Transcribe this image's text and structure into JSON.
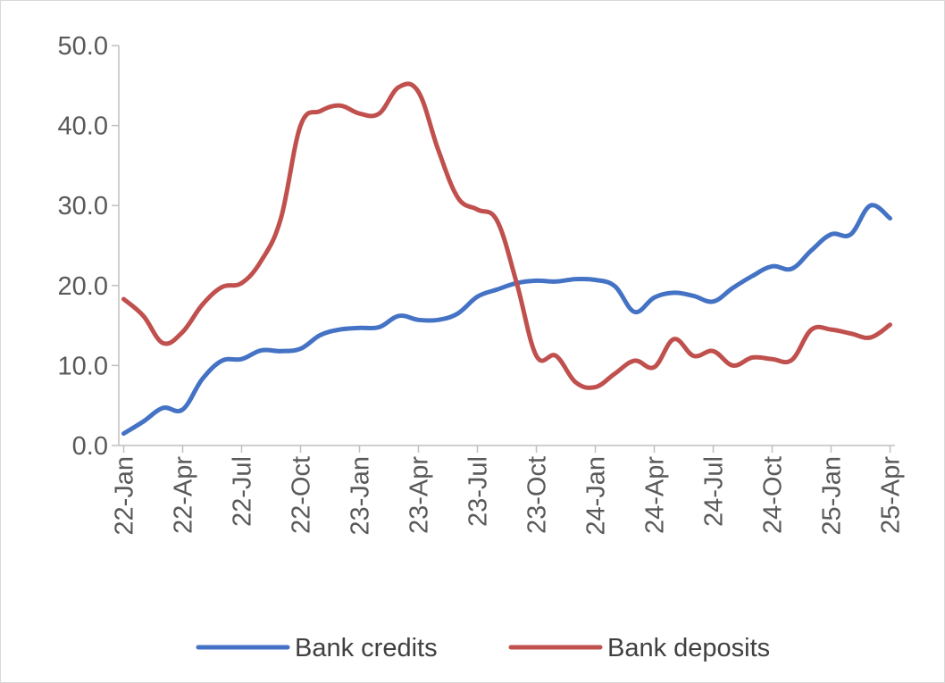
{
  "chart_data": {
    "type": "line",
    "title": "",
    "xlabel": "",
    "ylabel": "",
    "ylim": [
      0,
      50
    ],
    "yticks": [
      "0.0",
      "10.0",
      "20.0",
      "30.0",
      "40.0",
      "50.0"
    ],
    "y_tick_values": [
      0,
      10,
      20,
      30,
      40,
      50
    ],
    "xtick_labels": [
      "22-Jan",
      "22-Apr",
      "22-Jul",
      "22-Oct",
      "23-Jan",
      "23-Apr",
      "23-Jul",
      "23-Oct",
      "24-Jan",
      "24-Apr",
      "24-Jul",
      "24-Oct",
      "25-Jan",
      "25-Apr"
    ],
    "x": [
      "22-Jan",
      "22-Feb",
      "22-Mar",
      "22-Apr",
      "22-May",
      "22-Jun",
      "22-Jul",
      "22-Aug",
      "22-Sep",
      "22-Oct",
      "22-Nov",
      "22-Dec",
      "23-Jan",
      "23-Feb",
      "23-Mar",
      "23-Apr",
      "23-May",
      "23-Jun",
      "23-Jul",
      "23-Aug",
      "23-Sep",
      "23-Oct",
      "23-Nov",
      "23-Dec",
      "24-Jan",
      "24-Feb",
      "24-Mar",
      "24-Apr",
      "24-May",
      "24-Jun",
      "24-Jul",
      "24-Aug",
      "24-Sep",
      "24-Oct",
      "24-Nov",
      "24-Dec",
      "25-Jan",
      "25-Feb",
      "25-Mar",
      "25-Apr"
    ],
    "grid": false,
    "legend_position": "bottom",
    "series": [
      {
        "name": "Bank credits",
        "color": "#4472C4",
        "values": [
          1.5,
          3.0,
          4.7,
          4.5,
          8.3,
          10.6,
          10.8,
          11.9,
          11.8,
          12.1,
          13.8,
          14.5,
          14.7,
          14.8,
          16.2,
          15.7,
          15.7,
          16.5,
          18.6,
          19.5,
          20.3,
          20.6,
          20.5,
          20.8,
          20.7,
          19.9,
          16.7,
          18.5,
          19.1,
          18.7,
          18.0,
          19.7,
          21.2,
          22.4,
          22.1,
          24.4,
          26.4,
          26.4,
          30.0,
          28.4
        ]
      },
      {
        "name": "Bank deposits",
        "color": "#C0504D",
        "values": [
          18.3,
          16.2,
          12.8,
          14.2,
          17.6,
          19.8,
          20.3,
          23.1,
          28.4,
          40.0,
          41.8,
          42.5,
          41.5,
          41.5,
          44.8,
          44.2,
          37.0,
          31.0,
          29.5,
          28.1,
          20.3,
          11.2,
          11.2,
          7.9,
          7.3,
          9.0,
          10.6,
          9.8,
          13.3,
          11.2,
          11.8,
          10.0,
          11.0,
          10.8,
          10.7,
          14.5,
          14.5,
          14.0,
          13.5,
          15.1
        ]
      }
    ]
  }
}
